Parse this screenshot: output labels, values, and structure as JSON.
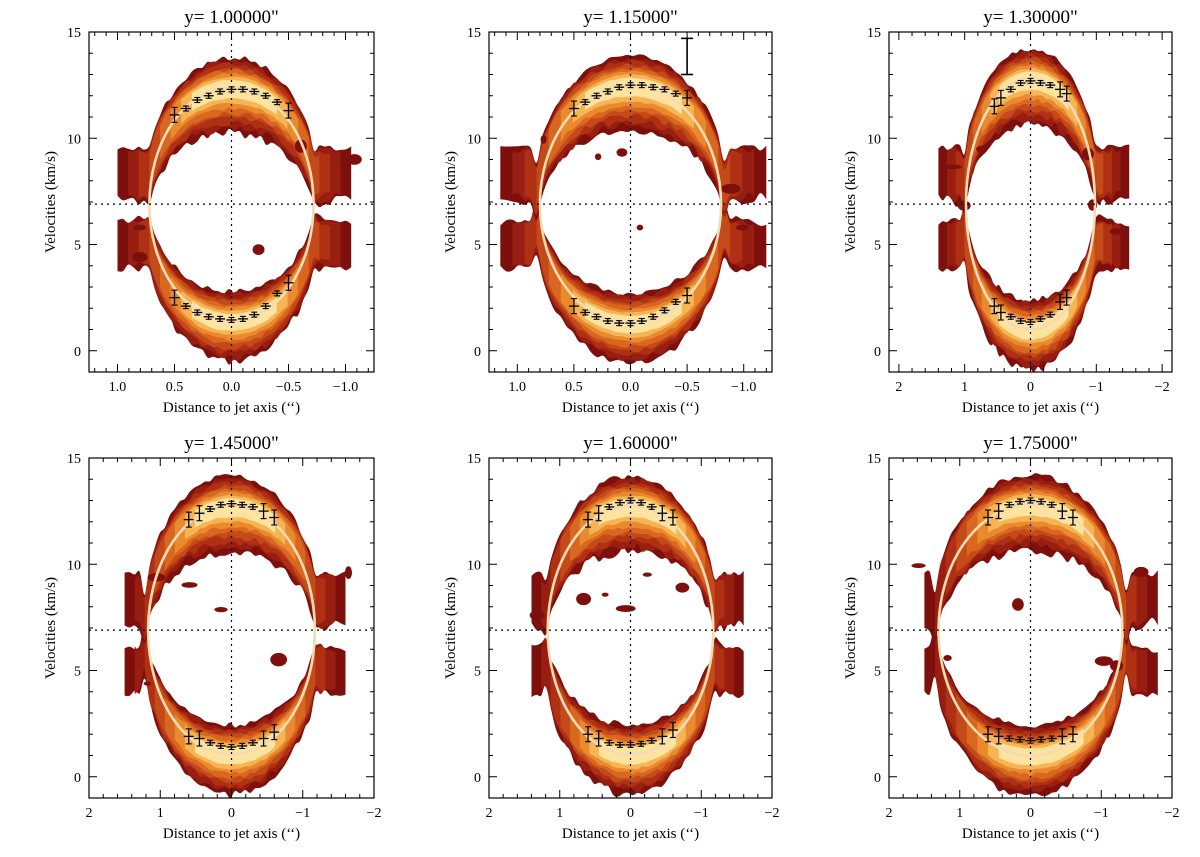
{
  "chart_data": [
    {
      "type": "contour",
      "title": "y= 1.00000\"",
      "xlabel": "Distance to jet axis (‘‘)",
      "ylabel": "Velocities (km/s)",
      "xlim": [
        1.25,
        -1.25
      ],
      "ylim": [
        -1,
        15
      ],
      "xticks": [
        1.0,
        0.5,
        0.0,
        -0.5,
        -1.0
      ],
      "xtick_labels": [
        "1.0",
        "0.5",
        "0.0",
        "−0.5",
        "−1.0"
      ],
      "yticks": [
        0,
        5,
        10,
        15
      ],
      "ytick_labels": [
        "0",
        "5",
        "10",
        "15"
      ],
      "ellipse": {
        "center_x": 0.0,
        "center_v": 6.9,
        "half_width": 0.72,
        "half_height": 5.5
      },
      "crosshair": {
        "x": 0.0,
        "v": 6.9
      },
      "blue_lobe": {
        "x": [
          0.5,
          0.4,
          0.3,
          0.2,
          0.1,
          0.0,
          -0.1,
          -0.2,
          -0.3,
          -0.4,
          -0.5
        ],
        "v": [
          2.5,
          2.1,
          1.8,
          1.6,
          1.5,
          1.45,
          1.5,
          1.7,
          2.1,
          2.7,
          3.2
        ]
      },
      "red_lobe": {
        "x": [
          0.5,
          0.4,
          0.3,
          0.2,
          0.1,
          0.0,
          -0.1,
          -0.2,
          -0.3,
          -0.4,
          -0.5
        ],
        "v": [
          11.1,
          11.4,
          11.8,
          12.0,
          12.2,
          12.3,
          12.3,
          12.2,
          12.0,
          11.7,
          11.3
        ]
      },
      "emission_extent": {
        "x_left": 1.0,
        "x_right": -1.05
      }
    },
    {
      "type": "contour",
      "title": "y= 1.15000\"",
      "xlabel": "Distance to jet axis (‘‘)",
      "ylabel": "Velocities (km/s)",
      "xlim": [
        1.25,
        -1.25
      ],
      "ylim": [
        -1,
        15
      ],
      "xticks": [
        1.0,
        0.5,
        0.0,
        -0.5,
        -1.0
      ],
      "xtick_labels": [
        "1.0",
        "0.5",
        "0.0",
        "−0.5",
        "−1.0"
      ],
      "yticks": [
        0,
        5,
        10,
        15
      ],
      "ytick_labels": [
        "0",
        "5",
        "10",
        "15"
      ],
      "ellipse": {
        "center_x": 0.0,
        "center_v": 6.9,
        "half_width": 0.8,
        "half_height": 5.6
      },
      "crosshair": {
        "x": 0.0,
        "v": 6.9
      },
      "blue_lobe": {
        "x": [
          0.5,
          0.4,
          0.3,
          0.2,
          0.1,
          0.0,
          -0.1,
          -0.2,
          -0.3,
          -0.4,
          -0.5
        ],
        "v": [
          2.1,
          1.8,
          1.6,
          1.4,
          1.3,
          1.3,
          1.4,
          1.6,
          1.9,
          2.3,
          2.6
        ]
      },
      "red_lobe": {
        "x": [
          0.5,
          0.4,
          0.3,
          0.2,
          0.1,
          0.0,
          -0.1,
          -0.2,
          -0.3,
          -0.4,
          -0.5
        ],
        "v": [
          11.4,
          11.7,
          12.0,
          12.2,
          12.4,
          12.5,
          12.5,
          12.4,
          12.3,
          12.1,
          11.9
        ]
      },
      "emission_extent": {
        "x_left": 1.15,
        "x_right": -1.2
      },
      "error_scale_bar": {
        "x": -0.5,
        "v_low": 13.0,
        "v_high": 14.7
      }
    },
    {
      "type": "contour",
      "title": "y= 1.30000\"",
      "xlabel": "Distance to jet axis (‘‘)",
      "ylabel": "Velocities (km/s)",
      "xlim": [
        2.15,
        -2.15
      ],
      "ylim": [
        -1,
        15
      ],
      "xticks": [
        2,
        1,
        0,
        -1,
        -2
      ],
      "xtick_labels": [
        "2",
        "1",
        "0",
        "−1",
        "−2"
      ],
      "yticks": [
        0,
        5,
        10,
        15
      ],
      "ytick_labels": [
        "0",
        "5",
        "10",
        "15"
      ],
      "ellipse": {
        "center_x": 0.0,
        "center_v": 6.9,
        "half_width": 0.98,
        "half_height": 5.9
      },
      "crosshair": {
        "x": 0.0,
        "v": 6.9
      },
      "blue_lobe": {
        "x": [
          0.55,
          0.45,
          0.3,
          0.15,
          0.0,
          -0.15,
          -0.3,
          -0.45,
          -0.55
        ],
        "v": [
          2.1,
          1.8,
          1.6,
          1.4,
          1.35,
          1.5,
          1.7,
          2.3,
          2.5
        ]
      },
      "red_lobe": {
        "x": [
          0.55,
          0.45,
          0.3,
          0.15,
          0.0,
          -0.15,
          -0.3,
          -0.45,
          -0.55
        ],
        "v": [
          11.5,
          11.9,
          12.3,
          12.6,
          12.7,
          12.6,
          12.5,
          12.3,
          12.1
        ]
      },
      "emission_extent": {
        "x_left": 1.4,
        "x_right": -1.5
      }
    },
    {
      "type": "contour",
      "title": "y= 1.45000\"",
      "xlabel": "Distance to jet axis (‘‘)",
      "ylabel": "Velocities (km/s)",
      "xlim": [
        2.0,
        -2.0
      ],
      "ylim": [
        -1,
        15
      ],
      "xticks": [
        2,
        1,
        0,
        -1,
        -2
      ],
      "xtick_labels": [
        "2",
        "1",
        "0",
        "−1",
        "−2"
      ],
      "yticks": [
        0,
        5,
        10,
        15
      ],
      "ytick_labels": [
        "0",
        "5",
        "10",
        "15"
      ],
      "ellipse": {
        "center_x": 0.0,
        "center_v": 6.9,
        "half_width": 1.17,
        "half_height": 5.85
      },
      "crosshair": {
        "x": 0.0,
        "v": 6.9
      },
      "blue_lobe": {
        "x": [
          0.6,
          0.45,
          0.3,
          0.15,
          0.0,
          -0.15,
          -0.3,
          -0.45,
          -0.6
        ],
        "v": [
          1.9,
          1.8,
          1.6,
          1.45,
          1.4,
          1.45,
          1.6,
          1.8,
          2.1
        ]
      },
      "red_lobe": {
        "x": [
          0.6,
          0.45,
          0.3,
          0.15,
          0.0,
          -0.15,
          -0.3,
          -0.45,
          -0.6
        ],
        "v": [
          12.1,
          12.4,
          12.6,
          12.8,
          12.85,
          12.8,
          12.7,
          12.5,
          12.2
        ]
      },
      "emission_extent": {
        "x_left": 1.5,
        "x_right": -1.6
      }
    },
    {
      "type": "contour",
      "title": "y= 1.60000\"",
      "xlabel": "Distance to jet axis (‘‘)",
      "ylabel": "Velocities (km/s)",
      "xlim": [
        2.0,
        -2.0
      ],
      "ylim": [
        -1,
        15
      ],
      "xticks": [
        2,
        1,
        0,
        -1,
        -2
      ],
      "xtick_labels": [
        "2",
        "1",
        "0",
        "−1",
        "−2"
      ],
      "yticks": [
        0,
        5,
        10,
        15
      ],
      "ytick_labels": [
        "0",
        "5",
        "10",
        "15"
      ],
      "ellipse": {
        "center_x": 0.0,
        "center_v": 6.9,
        "half_width": 1.17,
        "half_height": 5.85
      },
      "crosshair": {
        "x": 0.0,
        "v": 6.9
      },
      "blue_lobe": {
        "x": [
          0.6,
          0.45,
          0.3,
          0.15,
          0.0,
          -0.15,
          -0.3,
          -0.45,
          -0.6
        ],
        "v": [
          2.0,
          1.8,
          1.6,
          1.5,
          1.5,
          1.55,
          1.7,
          1.9,
          2.2
        ]
      },
      "red_lobe": {
        "x": [
          0.6,
          0.45,
          0.3,
          0.15,
          0.0,
          -0.15,
          -0.3,
          -0.45,
          -0.6
        ],
        "v": [
          12.1,
          12.4,
          12.7,
          12.9,
          13.0,
          12.9,
          12.7,
          12.4,
          12.2
        ]
      },
      "emission_extent": {
        "x_left": 1.4,
        "x_right": -1.6
      }
    },
    {
      "type": "contour",
      "title": "y= 1.75000\"",
      "xlabel": "Distance to jet axis (‘‘)",
      "ylabel": "Velocities (km/s)",
      "xlim": [
        2.0,
        -2.0
      ],
      "ylim": [
        -1,
        15
      ],
      "xticks": [
        2,
        1,
        0,
        -1,
        -2
      ],
      "xtick_labels": [
        "2",
        "1",
        "0",
        "−1",
        "−2"
      ],
      "yticks": [
        0,
        5,
        10,
        15
      ],
      "ytick_labels": [
        "0",
        "5",
        "10",
        "15"
      ],
      "ellipse": {
        "center_x": 0.0,
        "center_v": 6.9,
        "half_width": 1.3,
        "half_height": 5.9
      },
      "crosshair": {
        "x": 0.0,
        "v": 6.9
      },
      "blue_lobe": {
        "x": [
          0.6,
          0.45,
          0.3,
          0.15,
          0.0,
          -0.15,
          -0.3,
          -0.45,
          -0.6
        ],
        "v": [
          2.0,
          1.9,
          1.8,
          1.75,
          1.7,
          1.75,
          1.8,
          1.9,
          2.0
        ]
      },
      "red_lobe": {
        "x": [
          0.6,
          0.45,
          0.3,
          0.15,
          0.0,
          -0.15,
          -0.3,
          -0.45,
          -0.6
        ],
        "v": [
          12.2,
          12.5,
          12.8,
          12.95,
          13.0,
          12.95,
          12.8,
          12.5,
          12.2
        ]
      },
      "emission_extent": {
        "x_left": 1.5,
        "x_right": -1.8
      }
    }
  ],
  "colors": {
    "background": "#ffffff",
    "axes": "#000000",
    "ellipse": "#f3dcb2",
    "contour_levels": [
      "#7d0f0c",
      "#971e10",
      "#b03014",
      "#c44a19",
      "#d9671f",
      "#ea8a2e",
      "#f6b454",
      "#fde3a0"
    ],
    "markers": "#000000"
  }
}
